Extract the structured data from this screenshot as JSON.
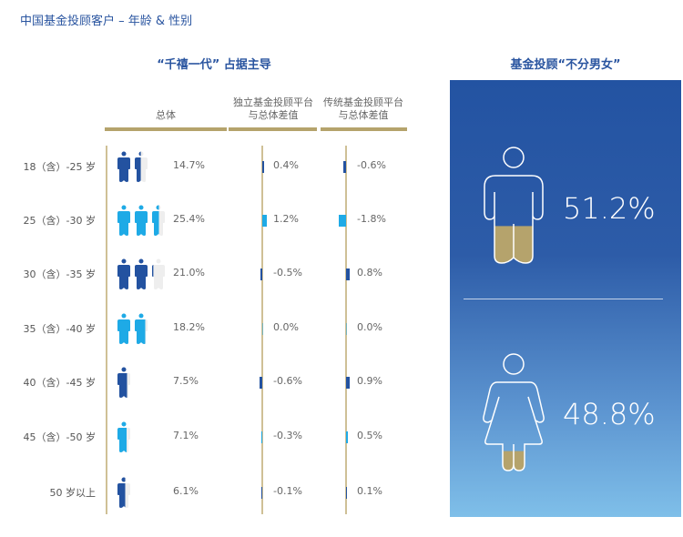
{
  "title": "中国基金投顾客户 – 年龄 & 性别",
  "subtitle": "“千禧一代” 占据主导",
  "columns": {
    "total": "总体",
    "independent": "独立基金投顾平台\n与总体差值",
    "traditional": "传统基金投顾平台\n与总体差值"
  },
  "colors": {
    "dark": "#2352a0",
    "light": "#1eaae6",
    "gold": "#b5a36c"
  },
  "chart_data": {
    "type": "table",
    "unit_per_icon": 10,
    "rows": [
      {
        "age": "18（含）-25 岁",
        "total": 14.7,
        "total_label": "14.7%",
        "ind": 0.4,
        "ind_label": "0.4%",
        "trad": -0.6,
        "trad_label": "-0.6%"
      },
      {
        "age": "25（含）-30 岁",
        "total": 25.4,
        "total_label": "25.4%",
        "ind": 1.2,
        "ind_label": "1.2%",
        "trad": -1.8,
        "trad_label": "-1.8%"
      },
      {
        "age": "30（含）-35 岁",
        "total": 21.0,
        "total_label": "21.0%",
        "ind": -0.5,
        "ind_label": "-0.5%",
        "trad": 0.8,
        "trad_label": "0.8%"
      },
      {
        "age": "35（含）-40 岁",
        "total": 18.2,
        "total_label": "18.2%",
        "ind": 0.0,
        "ind_label": "0.0%",
        "trad": 0.0,
        "trad_label": "0.0%"
      },
      {
        "age": "40（含）-45 岁",
        "total": 7.5,
        "total_label": "7.5%",
        "ind": -0.6,
        "ind_label": "-0.6%",
        "trad": 0.9,
        "trad_label": "0.9%"
      },
      {
        "age": "45（含）-50 岁",
        "total": 7.1,
        "total_label": "7.1%",
        "ind": -0.3,
        "ind_label": "-0.3%",
        "trad": 0.5,
        "trad_label": "0.5%"
      },
      {
        "age": "50 岁以上",
        "total": 6.1,
        "total_label": "6.1%",
        "ind": -0.1,
        "ind_label": "-0.1%",
        "trad": 0.1,
        "trad_label": "0.1%"
      }
    ]
  },
  "gender": {
    "title": "基金投顾“不分男女”",
    "male": {
      "value": 51.2,
      "label": "51.2%"
    },
    "female": {
      "value": 48.8,
      "label": "48.8%"
    }
  }
}
